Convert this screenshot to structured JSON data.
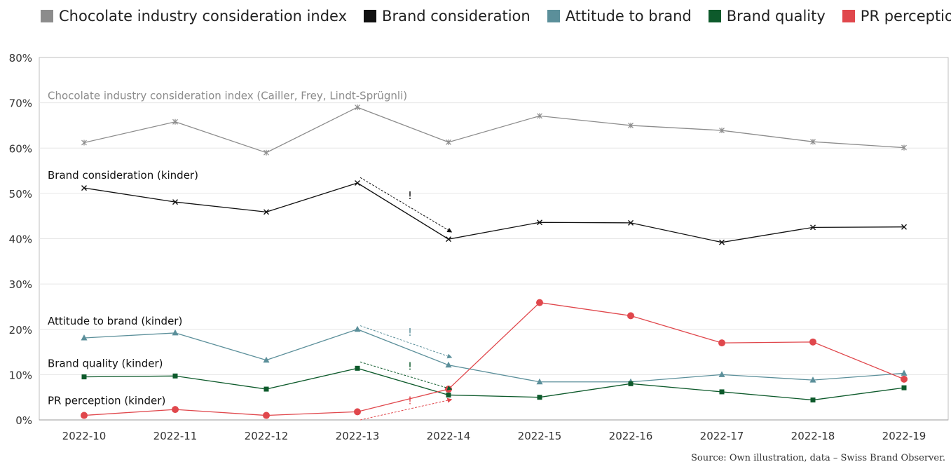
{
  "chart_data": {
    "type": "line",
    "categories": [
      "2022-10",
      "2022-11",
      "2022-12",
      "2022-13",
      "2022-14",
      "2022-15",
      "2022-16",
      "2022-17",
      "2022-18",
      "2022-19"
    ],
    "ylim": [
      0,
      80
    ],
    "yticks": [
      "0%",
      "10%",
      "20%",
      "30%",
      "40%",
      "50%",
      "60%",
      "70%",
      "80%"
    ],
    "grid": true,
    "legend_position": "top-left",
    "series": [
      {
        "key": "industry",
        "name": "Chocolate industry consideration index",
        "label": "Chocolate industry consideration index (Cailler, Frey, Lindt-Sprügnli)",
        "color": "#8c8c8c",
        "marker": "star",
        "values": [
          61.2,
          65.8,
          59.0,
          69.0,
          61.3,
          67.1,
          65.0,
          63.9,
          61.4,
          60.1
        ]
      },
      {
        "key": "brand",
        "name": "Brand consideration",
        "label": "Brand consideration (kinder)",
        "color": "#111111",
        "marker": "x",
        "values": [
          51.2,
          48.1,
          45.9,
          52.3,
          39.9,
          43.6,
          43.5,
          39.2,
          42.5,
          42.6
        ]
      },
      {
        "key": "attitude",
        "name": "Attitude to brand",
        "label": "Attitude to brand (kinder)",
        "color": "#5b8f9a",
        "marker": "triangle",
        "values": [
          18.1,
          19.2,
          13.2,
          20.0,
          12.1,
          8.4,
          8.4,
          10.0,
          8.8,
          10.3
        ]
      },
      {
        "key": "quality",
        "name": "Brand quality",
        "label": "Brand quality (kinder)",
        "color": "#0d5a2b",
        "marker": "square",
        "values": [
          9.5,
          9.7,
          6.8,
          11.4,
          5.5,
          5.0,
          8.0,
          6.2,
          4.4,
          7.1
        ]
      },
      {
        "key": "pr",
        "name": "PR perception",
        "label": "PR perception (kinder)",
        "color": "#e0474c",
        "marker": "circle",
        "values": [
          1.0,
          2.3,
          1.0,
          1.8,
          6.8,
          25.9,
          23.0,
          17.0,
          17.2,
          9.0
        ]
      }
    ],
    "annotations": [
      {
        "series": "brand",
        "text": "!",
        "from": [
          "2022-13",
          53.5
        ],
        "to": [
          "2022-14",
          41.5
        ]
      },
      {
        "series": "attitude",
        "text": "!",
        "from": [
          "2022-13",
          20.8
        ],
        "to": [
          "2022-14",
          13.8
        ]
      },
      {
        "series": "quality",
        "text": "!",
        "from": [
          "2022-13",
          12.8
        ],
        "to": [
          "2022-14",
          6.8
        ]
      },
      {
        "series": "pr",
        "text": "!",
        "from": [
          "2022-13",
          0.0
        ],
        "to": [
          "2022-14",
          4.5
        ]
      }
    ],
    "source": "Source: Own illustration, data – Swiss Brand Observer."
  }
}
